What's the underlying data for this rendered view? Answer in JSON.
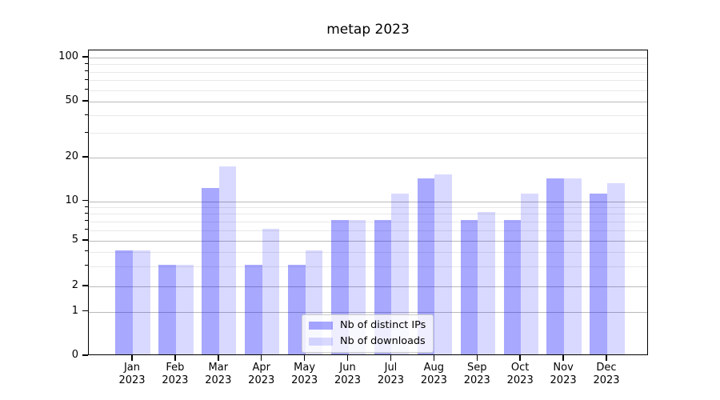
{
  "title": "metap 2023",
  "legend": {
    "items": [
      {
        "label": "Nb of distinct IPs",
        "color": "rgba(0,0,255,0.34)"
      },
      {
        "label": "Nb of downloads",
        "color": "rgba(0,0,255,0.15)"
      }
    ]
  },
  "y_axis": {
    "tick_labels": [
      "100",
      "50",
      "20",
      "10",
      "5",
      "2",
      "1",
      "0"
    ]
  },
  "x_axis": {
    "year": "2023",
    "months": [
      "Jan",
      "Feb",
      "Mar",
      "Apr",
      "May",
      "Jun",
      "Jul",
      "Aug",
      "Sep",
      "Oct",
      "Nov",
      "Dec"
    ]
  },
  "chart_data": {
    "type": "bar",
    "title": "metap 2023",
    "categories": [
      "Jan 2023",
      "Feb 2023",
      "Mar 2023",
      "Apr 2023",
      "May 2023",
      "Jun 2023",
      "Jul 2023",
      "Aug 2023",
      "Sep 2023",
      "Oct 2023",
      "Nov 2023",
      "Dec 2023"
    ],
    "series": [
      {
        "name": "Nb of distinct IPs",
        "color": "rgba(0,0,255,0.34)",
        "values": [
          4,
          3,
          12,
          3,
          3,
          7,
          7,
          14,
          7,
          7,
          14,
          11
        ]
      },
      {
        "name": "Nb of downloads",
        "color": "rgba(0,0,255,0.15)",
        "values": [
          4,
          3,
          17,
          6,
          4,
          7,
          11,
          15,
          8,
          11,
          14,
          13
        ]
      }
    ],
    "yscale": "symlog",
    "ylim": [
      0,
      112
    ],
    "yticks": [
      0,
      1,
      2,
      5,
      10,
      20,
      50,
      100
    ],
    "yticks_minor": [
      3,
      4,
      6,
      7,
      8,
      9,
      30,
      40,
      60,
      70,
      80,
      90
    ],
    "grid": true,
    "legend_position": "lower center"
  }
}
